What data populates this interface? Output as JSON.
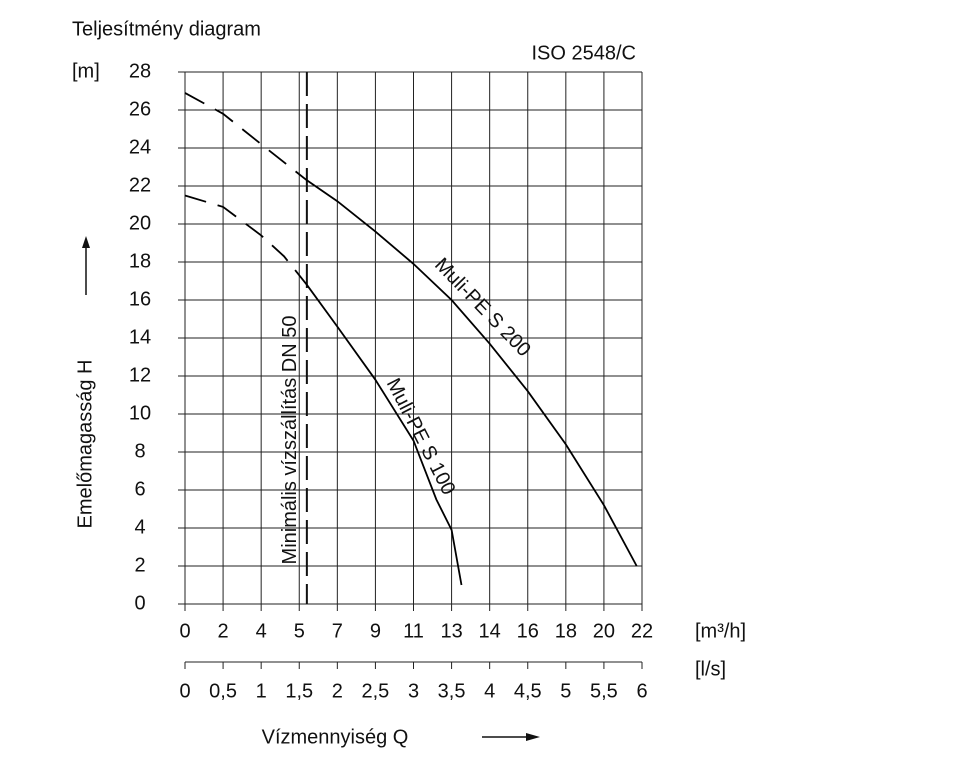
{
  "chart_data": {
    "type": "line",
    "title": "Teljesítmény diagram",
    "standard": "ISO 2548/C",
    "y_unit": "[m]",
    "y_label": "Emelőmagasság H",
    "x_label": "Vízmennyiség Q",
    "x_unit": "[l/s]",
    "x2_unit": "[m³/h]",
    "xlim": [
      0,
      6
    ],
    "xticks": [
      0,
      {
        "value": 0.5,
        "label": "0,5"
      },
      1,
      {
        "value": 1.5,
        "label": "1,5"
      },
      2,
      {
        "value": 2.5,
        "label": "2,5"
      },
      3,
      {
        "value": 3.5,
        "label": "3,5"
      },
      4,
      {
        "value": 4.5,
        "label": "4,5"
      },
      5,
      {
        "value": 5.5,
        "label": "5,5"
      },
      6
    ],
    "x2lim": [
      0,
      21.6
    ],
    "x2ticks": [
      0,
      {
        "value": 1.8,
        "label": "2"
      },
      {
        "value": 3.6,
        "label": "4"
      },
      {
        "value": 5.4,
        "label": "5"
      },
      {
        "value": 7.2,
        "label": "7"
      },
      9,
      {
        "value": 10.8,
        "label": "11"
      },
      {
        "value": 12.6,
        "label": "13"
      },
      {
        "value": 14.4,
        "label": "14"
      },
      {
        "value": 16.2,
        "label": "16"
      },
      18,
      {
        "value": 19.8,
        "label": "20"
      },
      {
        "value": 21.6,
        "label": "22"
      }
    ],
    "ylim": [
      0,
      28
    ],
    "yticks": [
      0,
      2,
      4,
      6,
      8,
      10,
      12,
      14,
      16,
      18,
      20,
      22,
      24,
      26,
      28
    ],
    "grid": true,
    "min_flow": {
      "label": "Minimális vízszállítás DN 50",
      "x": 1.6
    },
    "series": [
      {
        "name": "Muli-PE S 200",
        "color": "#000000",
        "dashed_below_x": 1.6,
        "x": [
          0,
          0.5,
          1.0,
          1.6,
          2.0,
          2.5,
          3.0,
          3.5,
          4.0,
          4.5,
          5.0,
          5.5,
          5.93
        ],
        "values": [
          26.9,
          25.8,
          24.2,
          22.3,
          21.2,
          19.6,
          17.9,
          16.0,
          13.7,
          11.2,
          8.4,
          5.2,
          2.0
        ]
      },
      {
        "name": "Muli-PE S 100",
        "color": "#000000",
        "dashed_below_x": 1.6,
        "x": [
          0,
          0.5,
          1.0,
          1.3,
          1.6,
          2.0,
          2.5,
          3.0,
          3.3,
          3.5,
          3.63
        ],
        "values": [
          21.5,
          20.9,
          19.4,
          18.3,
          16.8,
          14.6,
          11.8,
          8.6,
          5.5,
          3.9,
          1.0
        ]
      }
    ]
  }
}
